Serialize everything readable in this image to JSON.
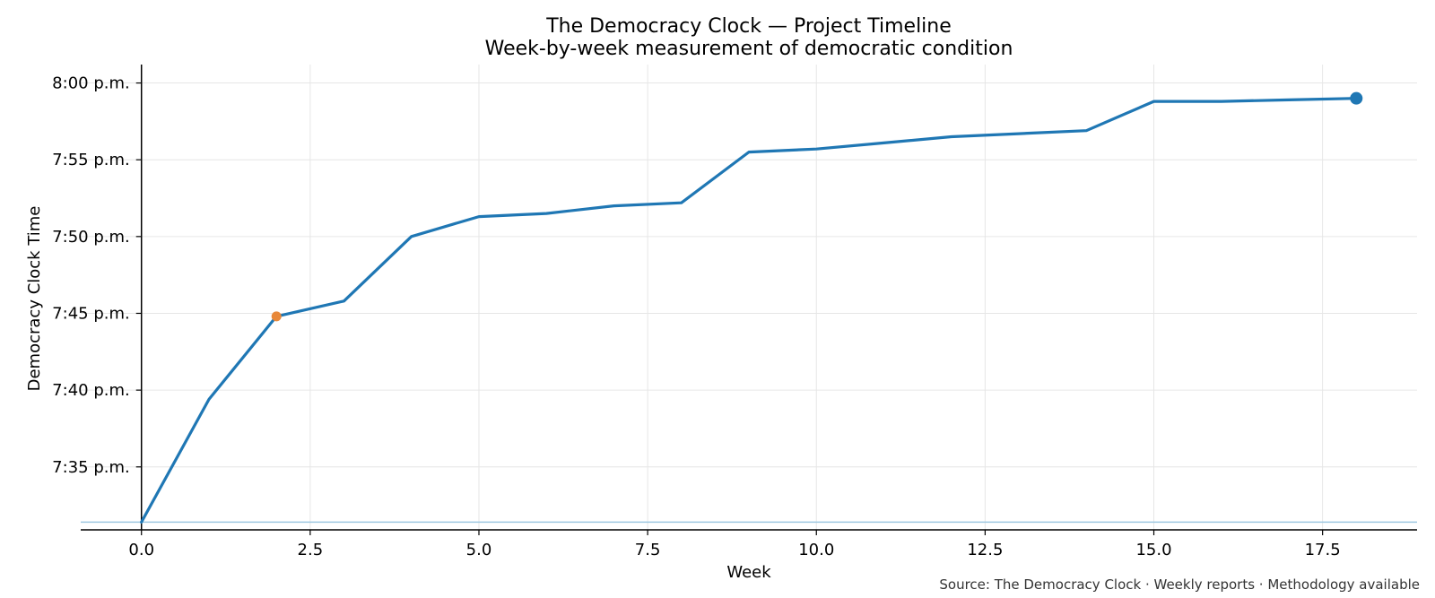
{
  "chart_data": {
    "type": "line",
    "title": "The Democracy Clock — Project Timeline",
    "subtitle": "Week-by-week measurement of democratic condition",
    "xlabel": "Week",
    "ylabel": "Democracy Clock Time",
    "source": "Source: The Democracy Clock · Weekly reports · Methodology available",
    "xlim": [
      -0.9,
      18.9
    ],
    "ylim_minutes": [
      450.9,
      481.2
    ],
    "x_ticks": [
      0,
      2.5,
      5,
      7.5,
      10,
      12.5,
      15,
      17.5
    ],
    "x_tick_labels": [
      "0.0",
      "2.5",
      "5.0",
      "7.5",
      "10.0",
      "12.5",
      "15.0",
      "17.5"
    ],
    "y_ticks_minutes": [
      455,
      460,
      465,
      470,
      475,
      480
    ],
    "y_tick_labels": [
      "7:35 p.m.",
      "7:40 p.m.",
      "7:45 p.m.",
      "7:50 p.m.",
      "7:55 p.m.",
      "8:00 p.m."
    ],
    "grid": true,
    "reference_line_minutes": 451.4,
    "series": [
      {
        "color": "#1f77b4",
        "x": [
          0,
          1,
          2,
          3,
          4,
          5,
          6,
          7,
          8,
          9,
          10,
          11,
          12,
          13,
          14,
          15,
          16,
          17,
          18
        ],
        "y_minutes": [
          451.4,
          459.4,
          464.8,
          465.8,
          470.0,
          471.3,
          471.5,
          472.0,
          472.2,
          475.5,
          475.7,
          476.1,
          476.5,
          476.7,
          476.9,
          478.8,
          478.8,
          478.9,
          479.0
        ]
      }
    ],
    "highlight_points": [
      {
        "x": 2,
        "y_minutes": 464.8,
        "color": "#e8883a"
      },
      {
        "x": 18,
        "y_minutes": 479.0,
        "color": "#1f77b4"
      }
    ],
    "reference_line_color": "#9ec8e0",
    "grid_color": "#e6e6e6"
  }
}
